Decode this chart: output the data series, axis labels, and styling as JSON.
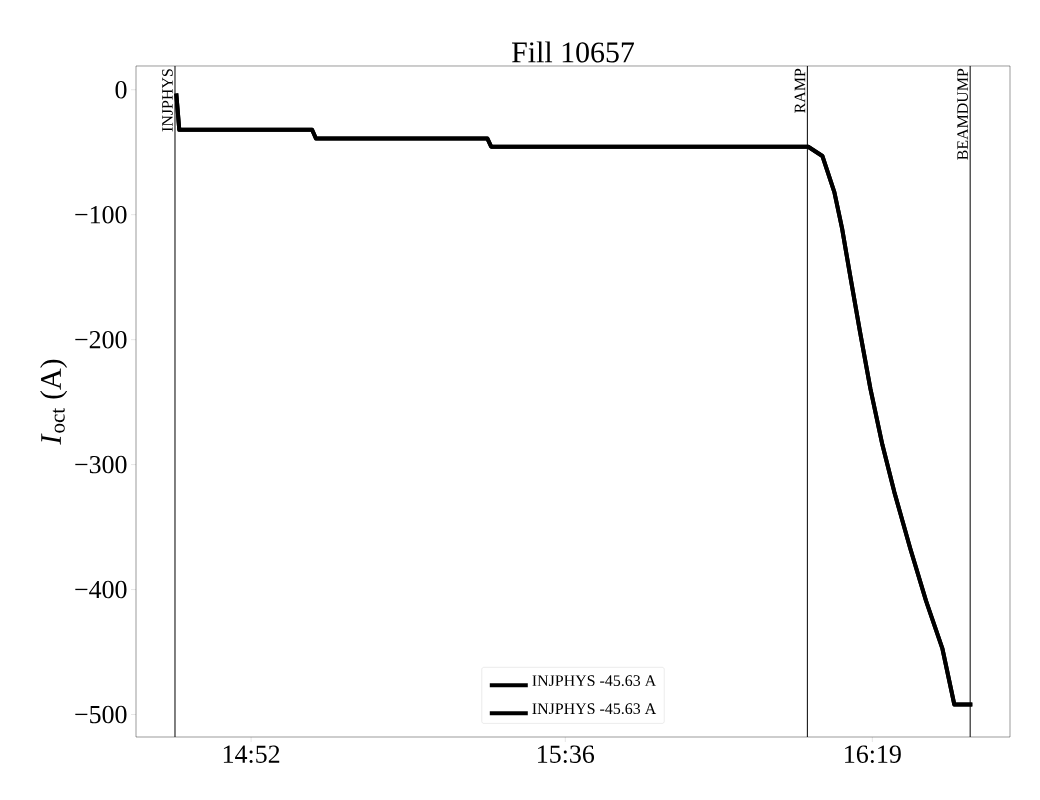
{
  "chart_data": {
    "type": "line",
    "title": "Fill 10657",
    "ylabel": "*I*$_{oct}$ (A)",
    "x": [
      14.692,
      14.699,
      15.009,
      15.018,
      15.418,
      15.427,
      16.167,
      16.2,
      16.228,
      16.246,
      16.265,
      16.288,
      16.312,
      16.34,
      16.368,
      16.405,
      16.442,
      16.48,
      16.508,
      16.54,
      16.55
    ],
    "series": [
      {
        "name": "INJPHYS -45.63 A",
        "color": "#000000",
        "values": [
          -3,
          -32,
          -32,
          -39,
          -39,
          -45.6,
          -45.6,
          -53,
          -82,
          -111,
          -149,
          -194,
          -239,
          -284,
          -322,
          -367,
          -409,
          -447,
          -492,
          -492,
          -492
        ]
      },
      {
        "name": "INJPHYS -45.63 A",
        "color": "#000000",
        "values": [
          -3,
          -32,
          -32,
          -39,
          -39,
          -45.6,
          -45.6,
          -53,
          -82,
          -111,
          -149,
          -194,
          -239,
          -284,
          -322,
          -367,
          -409,
          -447,
          -492,
          -492,
          -492
        ]
      }
    ],
    "xlim": [
      14.598,
      16.638
    ],
    "ylim": [
      -518,
      19
    ],
    "xticks": [
      {
        "value": 14.8667,
        "label": "14:52"
      },
      {
        "value": 15.6,
        "label": "15:36"
      },
      {
        "value": 16.3167,
        "label": "16:19"
      }
    ],
    "yticks": [
      {
        "value": 0,
        "label": "0"
      },
      {
        "value": -100,
        "label": "−100"
      },
      {
        "value": -200,
        "label": "−200"
      },
      {
        "value": -300,
        "label": "−300"
      },
      {
        "value": -400,
        "label": "−400"
      },
      {
        "value": -500,
        "label": "−500"
      }
    ],
    "ref_lines": [
      {
        "axis": "x",
        "value": 14.689,
        "label": "INJPHYS",
        "color": "#000000"
      },
      {
        "axis": "x",
        "value": 16.165,
        "label": "RAMP",
        "color": "#000000"
      },
      {
        "axis": "x",
        "value": 16.545,
        "label": "BEAMDUMP",
        "color": "#000000"
      }
    ],
    "legend": "bottom"
  }
}
